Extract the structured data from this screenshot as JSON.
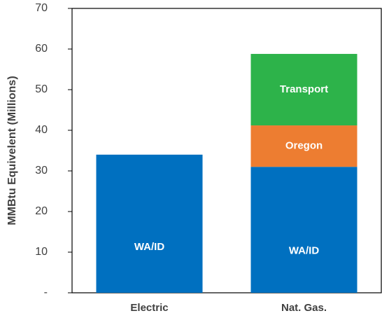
{
  "chart_data": {
    "type": "bar",
    "stacked": true,
    "y_label": "MMBtu Equivelent (Millions)",
    "categories": [
      "Electric",
      "Nat. Gas."
    ],
    "series": [
      {
        "name": "WA/ID",
        "color": "#0070c0",
        "values": [
          34,
          31
        ]
      },
      {
        "name": "Oregon",
        "color": "#ed7d31",
        "values": [
          null,
          10.2
        ]
      },
      {
        "name": "Transport",
        "color": "#2db34a",
        "values": [
          null,
          17.6
        ]
      }
    ],
    "ylim": [
      0,
      70
    ],
    "yticks": [
      {
        "value": 0,
        "label": "-"
      },
      10,
      20,
      30,
      40,
      50,
      60,
      70
    ]
  }
}
